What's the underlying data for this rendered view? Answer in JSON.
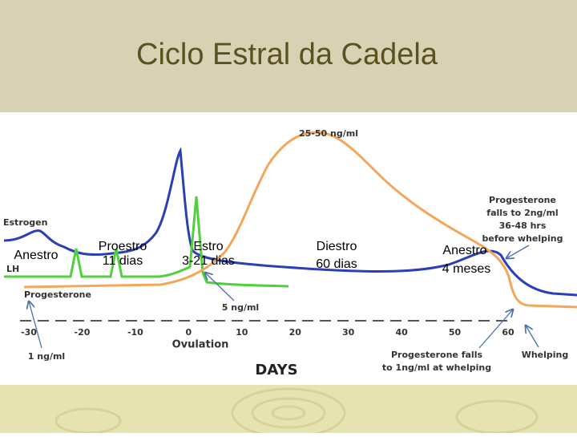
{
  "title": "Ciclo Estral da Cadela",
  "figure": {
    "hormones": [
      "Estrogen",
      "LH",
      "Progesterone"
    ],
    "peak_label": "25-50 ng/ml",
    "lh_label": "5 ng/ml",
    "baseline_label": "1 ng/ml",
    "prewhelp_note": [
      "Progesterone",
      "falls to 2ng/ml",
      "36-48 hrs",
      "before whelping"
    ],
    "whelp_note": [
      "Progesterone falls",
      "to 1ng/ml at whelping"
    ],
    "whelping": "Whelping",
    "x_ticks": [
      -30,
      -20,
      -10,
      0,
      10,
      20,
      30,
      40,
      50,
      60
    ],
    "x_tick_note": "Ovulation",
    "x_label": "DAYS"
  },
  "phases": [
    {
      "name": "Anestro"
    },
    {
      "name": "Proestro",
      "duration": "11 dias"
    },
    {
      "name": "Estro",
      "duration": "3-21 dias"
    },
    {
      "name": "Diestro",
      "duration": "60 dias"
    },
    {
      "name": "Anestro",
      "duration": "4 meses"
    }
  ]
}
